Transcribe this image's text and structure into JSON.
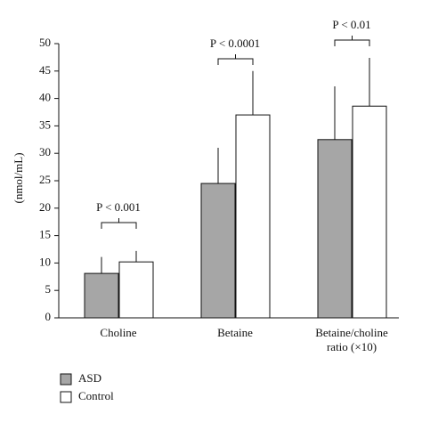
{
  "chart_data": {
    "type": "bar",
    "y_label": "(nmol/mL)",
    "categories": [
      "Choline",
      "Betaine",
      "Betaine/choline ratio (×10)"
    ],
    "series": [
      {
        "name": "ASD",
        "color": "#a6a6a6",
        "values": [
          8.1,
          24.5,
          32.5
        ],
        "errors": [
          3.0,
          6.5,
          9.7
        ]
      },
      {
        "name": "Control",
        "color": "#ffffff",
        "values": [
          10.2,
          37,
          38.6
        ],
        "errors": [
          2.0,
          8.0,
          8.8
        ]
      }
    ],
    "annotations": [
      "P < 0.001",
      "P < 0.0001",
      "P < 0.01"
    ],
    "ylim": [
      0,
      50
    ],
    "yticks": [
      0,
      5,
      10,
      15,
      20,
      25,
      30,
      35,
      40,
      45,
      50
    ],
    "grid": false
  }
}
